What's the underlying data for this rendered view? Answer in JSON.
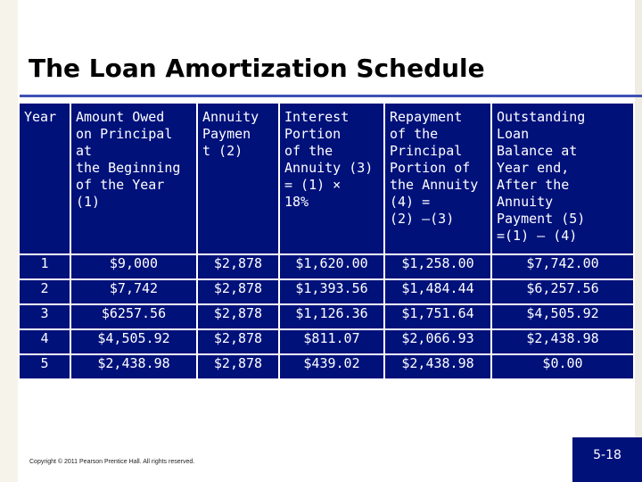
{
  "slide": {
    "title": "The Loan Amortization Schedule",
    "footer": "Copyright © 2011 Pearson Prentice Hall. All rights reserved.",
    "page_number": "5-18"
  },
  "table": {
    "headers": [
      [
        "Year"
      ],
      [
        "Amount Owed",
        "on Principal at",
        "the Beginning",
        "of the Year",
        "(1)"
      ],
      [
        "Annuity",
        "Paymen",
        "t (2)"
      ],
      [
        "Interest",
        "Portion",
        "of the",
        "Annuity (3)",
        "= (1) ×",
        "18%"
      ],
      [
        "Repayment",
        "of the",
        "Principal",
        "Portion of",
        "the Annuity",
        "(4) =",
        "(2) –(3)"
      ],
      [
        "Outstanding",
        "Loan",
        "Balance at",
        "Year end,",
        "After the",
        "Annuity",
        "Payment (5)",
        "=(1) – (4)"
      ]
    ],
    "rows": [
      [
        "1",
        "$9,000",
        "$2,878",
        "$1,620.00",
        "$1,258.00",
        "$7,742.00"
      ],
      [
        "2",
        "$7,742",
        "$2,878",
        "$1,393.56",
        "$1,484.44",
        "$6,257.56"
      ],
      [
        "3",
        "$6257.56",
        "$2,878",
        "$1,126.36",
        "$1,751.64",
        "$4,505.92"
      ],
      [
        "4",
        "$4,505.92",
        "$2,878",
        "$811.07",
        "$2,066.93",
        "$2,438.98"
      ],
      [
        "5",
        "$2,438.98",
        "$2,878",
        "$439.02",
        "$2,438.98",
        "$0.00"
      ]
    ]
  },
  "colors": {
    "table_background": "#00117a",
    "table_text": "#ffffff",
    "title_rule": "#3f51b5"
  }
}
